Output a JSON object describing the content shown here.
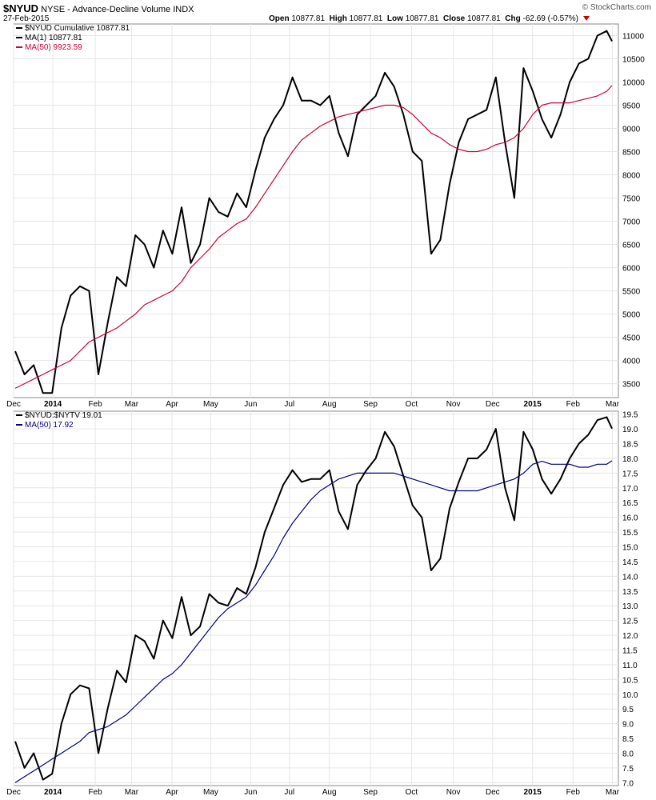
{
  "header": {
    "symbol": "$NYUD",
    "description": "NYSE - Advance-Decline Volume INDX",
    "date": "27-Feb-2015",
    "open_label": "Open",
    "open": "10877.81",
    "high_label": "High",
    "high": "10877.81",
    "low_label": "Low",
    "low": "10877.81",
    "close_label": "Close",
    "close": "10877.81",
    "chg_label": "Chg",
    "chg": "-62.69 (-0.57%)",
    "logo": "© StockCharts.com"
  },
  "colors": {
    "price": "#000000",
    "ma_top": "#cc0033",
    "ma_bottom": "#000080",
    "grid": "#e6e6e6"
  },
  "chart_data": [
    {
      "type": "line",
      "legend": [
        "$NYUD Cumulative 10877.81",
        "MA(1) 10877.81",
        "MA(50) 9923.59"
      ],
      "legend_placement": "top-left",
      "grid": true,
      "ylim": [
        3200,
        11250
      ],
      "y_ticks": [
        3500,
        4000,
        4500,
        5000,
        5500,
        6000,
        6500,
        7000,
        7500,
        8000,
        8500,
        9000,
        9500,
        10000,
        10500,
        11000
      ],
      "x_ticks": [
        "Dec",
        "2014",
        "Feb",
        "Mar",
        "Apr",
        "May",
        "Jun",
        "Jul",
        "Aug",
        "Sep",
        "Oct",
        "Nov",
        "Dec",
        "2015",
        "Feb",
        "Mar"
      ],
      "x": [
        "2013-12-02",
        "2013-12-09",
        "2013-12-16",
        "2013-12-23",
        "2013-12-30",
        "2014-01-06",
        "2014-01-13",
        "2014-01-20",
        "2014-01-27",
        "2014-02-03",
        "2014-02-10",
        "2014-02-17",
        "2014-02-24",
        "2014-03-03",
        "2014-03-10",
        "2014-03-17",
        "2014-03-24",
        "2014-03-31",
        "2014-04-07",
        "2014-04-14",
        "2014-04-21",
        "2014-04-28",
        "2014-05-05",
        "2014-05-12",
        "2014-05-19",
        "2014-05-26",
        "2014-06-02",
        "2014-06-09",
        "2014-06-16",
        "2014-06-23",
        "2014-06-30",
        "2014-07-07",
        "2014-07-14",
        "2014-07-21",
        "2014-07-28",
        "2014-08-04",
        "2014-08-11",
        "2014-08-18",
        "2014-08-25",
        "2014-09-01",
        "2014-09-08",
        "2014-09-15",
        "2014-09-22",
        "2014-09-29",
        "2014-10-06",
        "2014-10-13",
        "2014-10-20",
        "2014-10-27",
        "2014-11-03",
        "2014-11-10",
        "2014-11-17",
        "2014-11-24",
        "2014-12-01",
        "2014-12-08",
        "2014-12-15",
        "2014-12-22",
        "2014-12-29",
        "2015-01-05",
        "2015-01-12",
        "2015-01-19",
        "2015-01-26",
        "2015-02-02",
        "2015-02-09",
        "2015-02-16",
        "2015-02-23",
        "2015-02-27"
      ],
      "series": [
        {
          "values": [
            4200,
            3700,
            3900,
            3300,
            3300,
            4700,
            5400,
            5600,
            5500,
            3700,
            4800,
            5800,
            5600,
            6700,
            6500,
            6000,
            6800,
            6300,
            7300,
            6100,
            6500,
            7500,
            7200,
            7100,
            7600,
            7300,
            8100,
            8800,
            9200,
            9500,
            10100,
            9600,
            9600,
            9500,
            9700,
            8900,
            8400,
            9300,
            9500,
            9700,
            10200,
            9900,
            9300,
            8500,
            8300,
            6300,
            6600,
            7800,
            8700,
            9200,
            9300,
            9400,
            10100,
            8700,
            7500,
            10300,
            9800,
            9200,
            8800,
            9300,
            10000,
            10400,
            10500,
            11000,
            11100,
            10877.81
          ]
        },
        {
          "values": [
            3400,
            3500,
            3600,
            3700,
            3800,
            3900,
            4000,
            4200,
            4400,
            4500,
            4600,
            4700,
            4850,
            5000,
            5200,
            5300,
            5400,
            5500,
            5700,
            6000,
            6200,
            6400,
            6650,
            6800,
            6950,
            7050,
            7300,
            7600,
            7900,
            8200,
            8500,
            8750,
            8900,
            9050,
            9150,
            9250,
            9300,
            9350,
            9400,
            9450,
            9500,
            9500,
            9450,
            9300,
            9100,
            8900,
            8800,
            8650,
            8550,
            8500,
            8500,
            8550,
            8650,
            8700,
            8800,
            9000,
            9300,
            9500,
            9550,
            9550,
            9550,
            9600,
            9650,
            9700,
            9800,
            9923.59
          ]
        }
      ]
    },
    {
      "type": "line",
      "legend": [
        "$NYUD:$NYTV 19.01",
        "MA(50) 17.92"
      ],
      "legend_placement": "top-left",
      "grid": true,
      "ylim": [
        6.9,
        19.6
      ],
      "y_ticks": [
        7.0,
        7.5,
        8.0,
        8.5,
        9.0,
        9.5,
        10.0,
        10.5,
        11.0,
        11.5,
        12.0,
        12.5,
        13.0,
        13.5,
        14.0,
        14.5,
        15.0,
        15.5,
        16.0,
        16.5,
        17.0,
        17.5,
        18.0,
        18.5,
        19.0,
        19.5
      ],
      "x_ticks": [
        "Dec",
        "2014",
        "Feb",
        "Mar",
        "Apr",
        "May",
        "Jun",
        "Jul",
        "Aug",
        "Sep",
        "Oct",
        "Nov",
        "Dec",
        "2015",
        "Feb",
        "Mar"
      ],
      "x": [
        "2013-12-02",
        "2013-12-09",
        "2013-12-16",
        "2013-12-23",
        "2013-12-30",
        "2014-01-06",
        "2014-01-13",
        "2014-01-20",
        "2014-01-27",
        "2014-02-03",
        "2014-02-10",
        "2014-02-17",
        "2014-02-24",
        "2014-03-03",
        "2014-03-10",
        "2014-03-17",
        "2014-03-24",
        "2014-03-31",
        "2014-04-07",
        "2014-04-14",
        "2014-04-21",
        "2014-04-28",
        "2014-05-05",
        "2014-05-12",
        "2014-05-19",
        "2014-05-26",
        "2014-06-02",
        "2014-06-09",
        "2014-06-16",
        "2014-06-23",
        "2014-06-30",
        "2014-07-07",
        "2014-07-14",
        "2014-07-21",
        "2014-07-28",
        "2014-08-04",
        "2014-08-11",
        "2014-08-18",
        "2014-08-25",
        "2014-09-01",
        "2014-09-08",
        "2014-09-15",
        "2014-09-22",
        "2014-09-29",
        "2014-10-06",
        "2014-10-13",
        "2014-10-20",
        "2014-10-27",
        "2014-11-03",
        "2014-11-10",
        "2014-11-17",
        "2014-11-24",
        "2014-12-01",
        "2014-12-08",
        "2014-12-15",
        "2014-12-22",
        "2014-12-29",
        "2015-01-05",
        "2015-01-12",
        "2015-01-19",
        "2015-01-26",
        "2015-02-02",
        "2015-02-09",
        "2015-02-16",
        "2015-02-23",
        "2015-02-27"
      ],
      "series": [
        {
          "values": [
            8.4,
            7.5,
            8.0,
            7.1,
            7.3,
            9.0,
            10.0,
            10.3,
            10.2,
            8.0,
            9.5,
            10.8,
            10.4,
            12.0,
            11.8,
            11.2,
            12.5,
            11.9,
            13.3,
            12.0,
            12.3,
            13.4,
            13.1,
            13.0,
            13.6,
            13.4,
            14.3,
            15.5,
            16.3,
            17.1,
            17.6,
            17.2,
            17.3,
            17.3,
            17.6,
            16.2,
            15.6,
            17.1,
            17.6,
            18.0,
            18.9,
            18.4,
            17.4,
            16.4,
            16.0,
            14.2,
            14.6,
            16.3,
            17.2,
            18.0,
            18.0,
            18.3,
            19.0,
            17.0,
            15.9,
            18.9,
            18.3,
            17.3,
            16.8,
            17.3,
            18.0,
            18.5,
            18.8,
            19.3,
            19.4,
            19.01
          ]
        },
        {
          "values": [
            7.0,
            7.2,
            7.4,
            7.6,
            7.8,
            8.0,
            8.2,
            8.4,
            8.7,
            8.8,
            8.9,
            9.1,
            9.3,
            9.6,
            9.9,
            10.2,
            10.5,
            10.7,
            11.0,
            11.4,
            11.8,
            12.2,
            12.6,
            12.9,
            13.1,
            13.3,
            13.7,
            14.2,
            14.7,
            15.3,
            15.8,
            16.2,
            16.6,
            16.9,
            17.1,
            17.3,
            17.4,
            17.5,
            17.5,
            17.5,
            17.5,
            17.5,
            17.4,
            17.3,
            17.2,
            17.1,
            17.0,
            16.9,
            16.9,
            16.9,
            16.9,
            17.0,
            17.1,
            17.2,
            17.3,
            17.5,
            17.8,
            17.9,
            17.8,
            17.8,
            17.8,
            17.7,
            17.7,
            17.8,
            17.8,
            17.92
          ]
        }
      ]
    }
  ]
}
